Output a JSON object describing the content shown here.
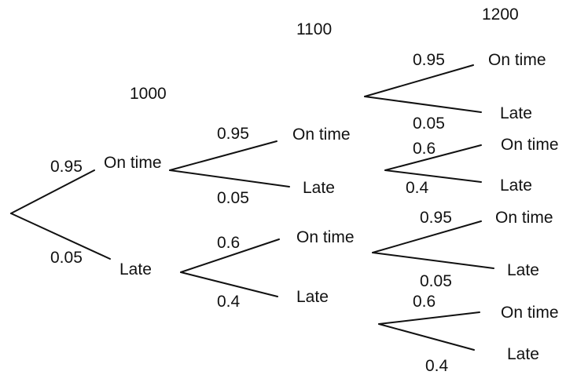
{
  "times": {
    "t1": "1000",
    "t2": "1100",
    "t3": "1200"
  },
  "level1": {
    "on_time": {
      "label": "On time",
      "prob": "0.95"
    },
    "late": {
      "label": "Late",
      "prob": "0.05"
    }
  },
  "level2": {
    "from_on_time": {
      "on_time": {
        "label": "On time",
        "prob": "0.95"
      },
      "late": {
        "label": "Late",
        "prob": "0.05"
      }
    },
    "from_late": {
      "on_time": {
        "label": "On time",
        "prob": "0.6"
      },
      "late": {
        "label": "Late",
        "prob": "0.4"
      }
    }
  },
  "level3": {
    "a": {
      "on_time": {
        "label": "On time",
        "prob": "0.95"
      },
      "late": {
        "label": "Late",
        "prob": "0.05"
      }
    },
    "b": {
      "on_time": {
        "label": "On time",
        "prob": "0.6"
      },
      "late": {
        "label": "Late",
        "prob": "0.4"
      }
    },
    "c": {
      "on_time": {
        "label": "On time",
        "prob": "0.95"
      },
      "late": {
        "label": "Late",
        "prob": "0.05"
      }
    },
    "d": {
      "on_time": {
        "label": "On time",
        "prob": "0.6"
      },
      "late": {
        "label": "Late",
        "prob": "0.4"
      }
    }
  }
}
